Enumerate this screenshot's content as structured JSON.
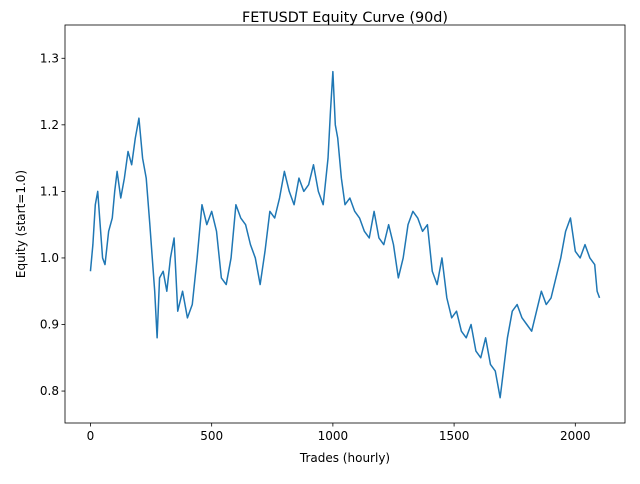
{
  "chart_data": {
    "type": "line",
    "title": "FETUSDT Equity Curve (90d)",
    "x_label": "Trades (hourly)",
    "y_label": "Equity (start=1.0)",
    "x": [
      0,
      10,
      20,
      30,
      40,
      50,
      60,
      75,
      90,
      100,
      110,
      125,
      140,
      155,
      170,
      185,
      200,
      215,
      230,
      245,
      255,
      265,
      275,
      285,
      300,
      315,
      330,
      345,
      360,
      380,
      400,
      420,
      440,
      460,
      480,
      500,
      520,
      540,
      560,
      580,
      600,
      620,
      640,
      660,
      680,
      700,
      720,
      740,
      760,
      780,
      800,
      820,
      840,
      860,
      880,
      900,
      920,
      940,
      960,
      980,
      990,
      1000,
      1010,
      1020,
      1035,
      1050,
      1070,
      1090,
      1110,
      1130,
      1150,
      1170,
      1190,
      1210,
      1230,
      1250,
      1270,
      1290,
      1310,
      1330,
      1350,
      1370,
      1390,
      1410,
      1430,
      1450,
      1470,
      1490,
      1510,
      1530,
      1550,
      1570,
      1590,
      1610,
      1630,
      1650,
      1670,
      1690,
      1700,
      1720,
      1740,
      1760,
      1780,
      1800,
      1820,
      1840,
      1860,
      1880,
      1900,
      1920,
      1940,
      1960,
      1980,
      2000,
      2020,
      2040,
      2060,
      2080,
      2090,
      2100
    ],
    "series": [
      {
        "color": "#1f77b4",
        "values": [
          0.98,
          1.02,
          1.08,
          1.1,
          1.05,
          1.0,
          0.99,
          1.04,
          1.06,
          1.1,
          1.13,
          1.09,
          1.12,
          1.16,
          1.14,
          1.18,
          1.21,
          1.15,
          1.12,
          1.05,
          1.0,
          0.95,
          0.88,
          0.97,
          0.98,
          0.95,
          1.0,
          1.03,
          0.92,
          0.95,
          0.91,
          0.93,
          1.0,
          1.08,
          1.05,
          1.07,
          1.04,
          0.97,
          0.96,
          1.0,
          1.08,
          1.06,
          1.05,
          1.02,
          1.0,
          0.96,
          1.01,
          1.07,
          1.06,
          1.09,
          1.13,
          1.1,
          1.08,
          1.12,
          1.1,
          1.11,
          1.14,
          1.1,
          1.08,
          1.15,
          1.22,
          1.28,
          1.2,
          1.18,
          1.12,
          1.08,
          1.09,
          1.07,
          1.06,
          1.04,
          1.03,
          1.07,
          1.03,
          1.02,
          1.05,
          1.02,
          0.97,
          1.0,
          1.05,
          1.07,
          1.06,
          1.04,
          1.05,
          0.98,
          0.96,
          1.0,
          0.94,
          0.91,
          0.92,
          0.89,
          0.88,
          0.9,
          0.86,
          0.85,
          0.88,
          0.84,
          0.83,
          0.79,
          0.82,
          0.88,
          0.92,
          0.93,
          0.91,
          0.9,
          0.89,
          0.92,
          0.95,
          0.93,
          0.94,
          0.97,
          1.0,
          1.04,
          1.06,
          1.01,
          1.0,
          1.02,
          1.0,
          0.99,
          0.95,
          0.94
        ]
      }
    ],
    "xlim": [
      -105,
      2205
    ],
    "xticks": [
      0,
      500,
      1000,
      1500,
      2000
    ],
    "ylim": [
      0.752,
      1.35
    ],
    "yticks": [
      0.8,
      0.9,
      {
        "value": 1,
        "label": "1.0"
      },
      1.1,
      1.2,
      1.3
    ],
    "grid": false
  }
}
